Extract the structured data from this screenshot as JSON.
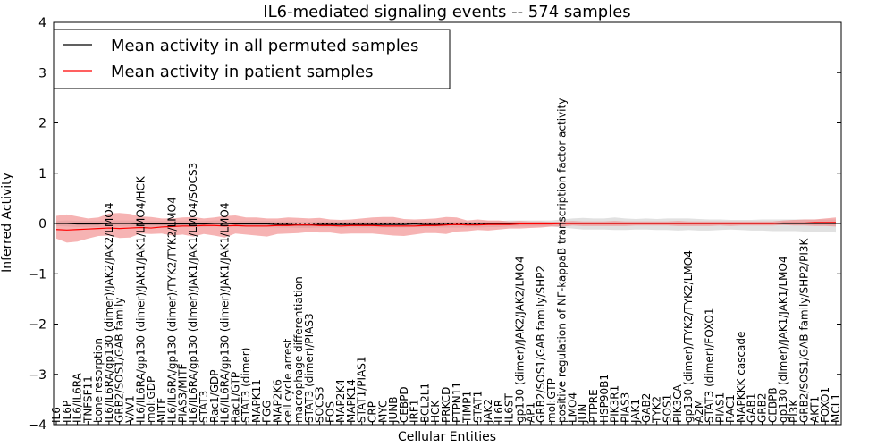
{
  "chart_data": {
    "type": "line",
    "title": "IL6-mediated signaling events -- 574 samples",
    "xlabel": "Cellular Entities",
    "ylabel": "Inferred Activity",
    "ylim": [
      -4,
      4
    ],
    "yticks": [
      "4",
      "3",
      "2",
      "1",
      "0",
      "−1",
      "−2",
      "−3",
      "−4"
    ],
    "legend_position": "top-left",
    "categories": [
      "IL6",
      "IL6P",
      "IL6/IL6RA",
      "TNFSF11",
      "bone resorption",
      "IL6/IL6RA/gp130 (dimer)/JAK2/JAK2/LMO4",
      "GRB2/SOS1/GAB family",
      "VAV1",
      "IL6/IL6RA/gp130 (dimer)/JAK1/JAK1/LMO4/HCK",
      "mol:GDP",
      "MITF",
      "IL6/IL6RA/gp130 (dimer)/TYK2/TYK2/LMO4",
      "PIAS3/MITF",
      "IL6/IL6RA/gp130 (dimer)/JAK1/JAK1/LMO4/SOCS3",
      "STAT3",
      "Rac1/GDP",
      "IL6/IL6RA/gp130 (dimer)/JAK1/JAK1/LMO4",
      "Rac1/GTP",
      "STAT3 (dimer)",
      "MAPK11",
      "FGG",
      "MAP2K6",
      "cell cycle arrest",
      "macrophage differentiation",
      "STAT3 (dimer)/PIAS3",
      "SOCS3",
      "FOS",
      "MAP2K4",
      "MAPK14",
      "STAT1/PIAS1",
      "CRP",
      "MYC",
      "JUNB",
      "CEBPD",
      "IRF1",
      "BCL2L1",
      "HCK",
      "PRKCD",
      "PTPN11",
      "TIMP1",
      "STAT1",
      "JAK2",
      "IL6R",
      "IL6ST",
      "gp130 (dimer)/JAK2/JAK2/LMO4",
      "AP1",
      "GRB2/SOS1/GAB family/SHP2",
      "mol:GTP",
      "positive regulation of NF-kappaB transcription factor activity",
      "LMO4",
      "JUN",
      "PTPRE",
      "HSP90B1",
      "PIK3R1",
      "PIAS3",
      "JAK1",
      "GAB2",
      "TYK2",
      "SOS1",
      "PIK3CA",
      "gp130 (dimer)/TYK2/TYK2/LMO4",
      "A2M",
      "STAT3 (dimer)/FOXO1",
      "PIAS1",
      "RAC1",
      "MAPKKK cascade",
      "GAB1",
      "GRB2",
      "CEBPB",
      "gp130 (dimer)/JAK1/JAK1/LMO4",
      "PI3K",
      "GRB2/SOS1/GAB family/SHP2/PI3K",
      "AKT1",
      "FOXO1",
      "MCL1"
    ],
    "series": [
      {
        "name": "Mean activity in all permuted samples",
        "color": "#000000",
        "values": [
          0.0,
          0.0,
          -0.01,
          -0.01,
          -0.01,
          0.0,
          0.0,
          0.0,
          -0.01,
          -0.01,
          -0.01,
          -0.01,
          -0.01,
          -0.01,
          -0.01,
          0.0,
          0.0,
          -0.01,
          -0.01,
          -0.01,
          -0.01,
          -0.02,
          -0.02,
          -0.03,
          -0.03,
          -0.02,
          -0.02,
          -0.02,
          -0.02,
          -0.02,
          -0.02,
          -0.02,
          -0.02,
          -0.02,
          -0.01,
          -0.02,
          -0.02,
          -0.02,
          -0.02,
          -0.02,
          -0.02,
          -0.01,
          -0.01,
          0.0,
          0.0,
          0.0,
          0.0,
          0.0,
          0.0,
          0.0,
          0.0,
          0.0,
          0.0,
          0.0,
          0.0,
          0.0,
          0.0,
          0.0,
          0.0,
          0.0,
          0.0,
          0.0,
          0.0,
          0.0,
          0.0,
          0.0,
          0.0,
          0.0,
          0.0,
          0.0,
          0.0,
          0.0,
          0.0,
          0.0,
          0.0
        ],
        "band_low": [
          -0.05,
          -0.06,
          -0.07,
          -0.07,
          -0.07,
          -0.06,
          -0.06,
          -0.06,
          -0.07,
          -0.07,
          -0.07,
          -0.07,
          -0.07,
          -0.07,
          -0.07,
          -0.06,
          -0.06,
          -0.07,
          -0.07,
          -0.07,
          -0.07,
          -0.08,
          -0.08,
          -0.09,
          -0.09,
          -0.08,
          -0.08,
          -0.08,
          -0.08,
          -0.08,
          -0.08,
          -0.08,
          -0.08,
          -0.08,
          -0.07,
          -0.08,
          -0.08,
          -0.08,
          -0.08,
          -0.08,
          -0.08,
          -0.07,
          -0.07,
          -0.06,
          -0.06,
          -0.06,
          -0.06,
          -0.06,
          -0.08,
          -0.1,
          -0.12,
          -0.12,
          -0.12,
          -0.13,
          -0.13,
          -0.12,
          -0.12,
          -0.13,
          -0.13,
          -0.14,
          -0.13,
          -0.14,
          -0.14,
          -0.13,
          -0.12,
          -0.13,
          -0.14,
          -0.14,
          -0.15,
          -0.15,
          -0.15,
          -0.16,
          -0.16,
          -0.17,
          -0.18
        ],
        "band_high": [
          0.05,
          0.06,
          0.05,
          0.05,
          0.05,
          0.06,
          0.06,
          0.06,
          0.05,
          0.05,
          0.05,
          0.05,
          0.05,
          0.05,
          0.05,
          0.06,
          0.06,
          0.05,
          0.05,
          0.05,
          0.05,
          0.04,
          0.04,
          0.03,
          0.03,
          0.04,
          0.04,
          0.04,
          0.04,
          0.04,
          0.04,
          0.04,
          0.04,
          0.04,
          0.05,
          0.04,
          0.04,
          0.04,
          0.04,
          0.04,
          0.04,
          0.05,
          0.05,
          0.06,
          0.06,
          0.06,
          0.06,
          0.06,
          0.08,
          0.1,
          0.11,
          0.1,
          0.1,
          0.12,
          0.1,
          0.09,
          0.1,
          0.09,
          0.1,
          0.1,
          0.1,
          0.09,
          0.08,
          0.08,
          0.07,
          0.07,
          0.07,
          0.08,
          0.08,
          0.08,
          0.08,
          0.08,
          0.08,
          0.08,
          0.08
        ]
      },
      {
        "name": "Mean activity in patient samples",
        "color": "#ff0000",
        "values": [
          -0.12,
          -0.13,
          -0.12,
          -0.11,
          -0.1,
          -0.09,
          -0.1,
          -0.09,
          -0.08,
          -0.09,
          -0.07,
          -0.06,
          -0.05,
          -0.05,
          -0.04,
          -0.04,
          -0.05,
          -0.04,
          -0.05,
          -0.05,
          -0.05,
          -0.04,
          -0.04,
          -0.03,
          -0.03,
          -0.04,
          -0.04,
          -0.05,
          -0.04,
          -0.04,
          -0.04,
          -0.05,
          -0.05,
          -0.05,
          -0.05,
          -0.04,
          -0.04,
          -0.03,
          -0.02,
          -0.03,
          -0.03,
          -0.02,
          -0.02,
          -0.02,
          -0.01,
          -0.01,
          -0.01,
          -0.01,
          0.0,
          0.0,
          0.0,
          0.0,
          0.0,
          0.0,
          0.0,
          0.0,
          0.0,
          0.0,
          0.0,
          0.0,
          0.0,
          0.0,
          0.0,
          0.0,
          0.0,
          0.0,
          0.0,
          0.0,
          0.0,
          0.01,
          0.01,
          0.01,
          0.02,
          0.02,
          0.02
        ],
        "band_low": [
          -0.3,
          -0.38,
          -0.36,
          -0.3,
          -0.25,
          -0.24,
          -0.29,
          -0.28,
          -0.2,
          -0.21,
          -0.2,
          -0.24,
          -0.22,
          -0.26,
          -0.21,
          -0.24,
          -0.28,
          -0.2,
          -0.22,
          -0.24,
          -0.26,
          -0.21,
          -0.2,
          -0.19,
          -0.17,
          -0.18,
          -0.18,
          -0.21,
          -0.2,
          -0.2,
          -0.2,
          -0.22,
          -0.24,
          -0.25,
          -0.22,
          -0.19,
          -0.19,
          -0.21,
          -0.16,
          -0.15,
          -0.13,
          -0.14,
          -0.12,
          -0.1,
          -0.1,
          -0.09,
          -0.08,
          -0.06,
          -0.06,
          -0.04,
          -0.05,
          -0.05,
          -0.05,
          -0.05,
          -0.05,
          -0.04,
          -0.04,
          -0.04,
          -0.04,
          -0.05,
          -0.05,
          -0.05,
          -0.05,
          -0.04,
          -0.05,
          -0.04,
          -0.04,
          -0.04,
          -0.04,
          -0.03,
          -0.04,
          -0.04,
          -0.05,
          -0.05,
          -0.06
        ],
        "band_high": [
          0.15,
          0.18,
          0.14,
          0.1,
          0.12,
          0.2,
          0.21,
          0.19,
          0.14,
          0.13,
          0.1,
          0.1,
          0.12,
          0.13,
          0.1,
          0.12,
          0.15,
          0.16,
          0.12,
          0.12,
          0.1,
          0.1,
          0.12,
          0.11,
          0.1,
          0.11,
          0.08,
          0.07,
          0.08,
          0.1,
          0.12,
          0.13,
          0.13,
          0.09,
          0.08,
          0.09,
          0.1,
          0.13,
          0.12,
          0.06,
          0.08,
          0.06,
          0.06,
          0.04,
          0.05,
          0.04,
          0.04,
          0.03,
          0.04,
          0.05,
          0.04,
          0.04,
          0.04,
          0.05,
          0.04,
          0.04,
          0.04,
          0.04,
          0.04,
          0.05,
          0.04,
          0.04,
          0.04,
          0.04,
          0.04,
          0.04,
          0.04,
          0.04,
          0.04,
          0.06,
          0.07,
          0.08,
          0.08,
          0.1,
          0.12
        ]
      }
    ],
    "colors": {
      "permuted_band": "#c8c8c8",
      "patient_band": "#f08080",
      "zero_line": "#000000"
    }
  }
}
